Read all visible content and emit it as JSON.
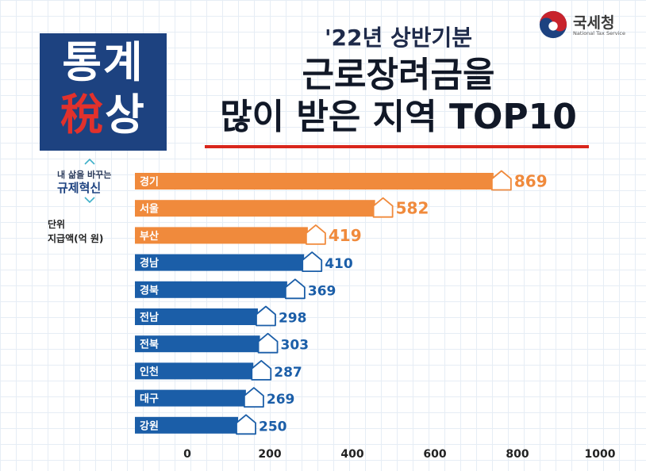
{
  "agency": {
    "name": "국세청",
    "name_en": "National Tax Service",
    "logo_colors": [
      "#c8232c",
      "#1d4280"
    ]
  },
  "badge": {
    "line1": "통계",
    "line2_tax": "稅",
    "line2_rest": "상",
    "bg_color": "#1d4280",
    "tax_color": "#e2312c"
  },
  "title": {
    "pre": "'22년 상반기분",
    "line1": "근로장려금을",
    "line2": "많이 받은 지역 TOP10",
    "underline_color": "#d9261c"
  },
  "campaign": {
    "line1": "내 삶을 바꾸는",
    "line2": "규제혁신"
  },
  "unit": {
    "label": "단위",
    "value": "지급액(억 원)"
  },
  "chart_data": {
    "type": "bar",
    "orientation": "horizontal",
    "categories": [
      "경기",
      "서울",
      "부산",
      "경남",
      "경북",
      "전남",
      "전북",
      "인천",
      "대구",
      "강원"
    ],
    "values": [
      869,
      582,
      419,
      410,
      369,
      298,
      303,
      287,
      269,
      250
    ],
    "bar_colors": [
      "#f08a3c",
      "#f08a3c",
      "#f08a3c",
      "#1b5ea8",
      "#1b5ea8",
      "#1b5ea8",
      "#1b5ea8",
      "#1b5ea8",
      "#1b5ea8",
      "#1b5ea8"
    ],
    "x_ticks": [
      "0",
      "200",
      "400",
      "600",
      "800",
      "1000"
    ],
    "xlim": [
      0,
      1000
    ],
    "marker_icon": "house-icon",
    "grid": false,
    "legend": "none"
  }
}
